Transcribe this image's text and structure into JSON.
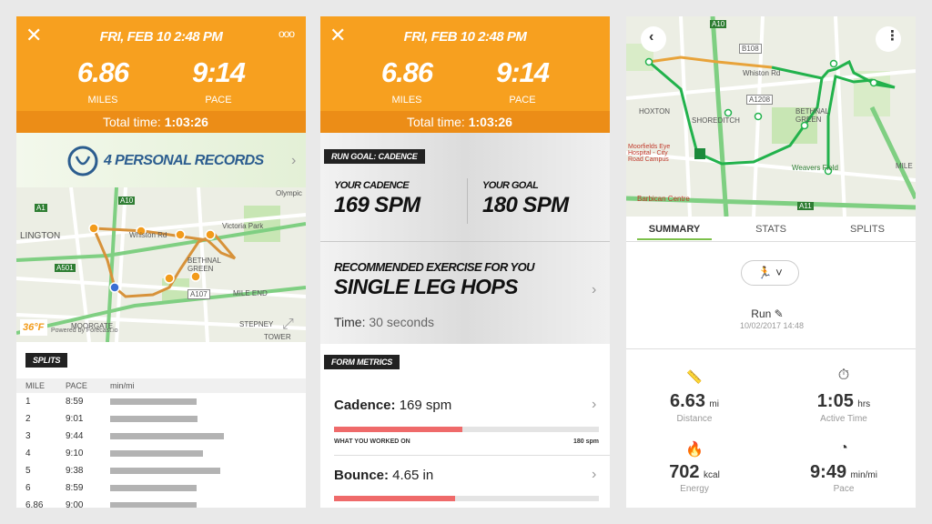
{
  "panel1": {
    "header": {
      "date": "FRI, FEB 10 2:48 PM",
      "distance": "6.86",
      "distance_label": "MILES",
      "pace": "9:14",
      "pace_label": "PACE",
      "total_time_label": "Total time:",
      "total_time": "1:03:26"
    },
    "records": "4 PERSONAL RECORDS",
    "map": {
      "labels": [
        "Olympic",
        "LINGTON",
        "Whiston Rd",
        "Victoria Park",
        "BETHNAL GREEN",
        "MILE END",
        "STEPNEY",
        "TOWER",
        "MOORGATE",
        "A10",
        "A1",
        "A501",
        "A107"
      ],
      "temperature": "36°F",
      "credit": "Powered by Forecast.io"
    },
    "splits": {
      "title": "SPLITS",
      "columns": [
        "MILE",
        "PACE",
        "min/mi"
      ],
      "rows": [
        [
          "1",
          "8:59"
        ],
        [
          "2",
          "9:01"
        ],
        [
          "3",
          "9:44"
        ],
        [
          "4",
          "9:10"
        ],
        [
          "5",
          "9:38"
        ],
        [
          "6",
          "8:59"
        ],
        [
          "6.86",
          "9:00"
        ]
      ]
    }
  },
  "panel2": {
    "header": {
      "date": "FRI, FEB 10 2:48 PM",
      "distance": "6.86",
      "distance_label": "MILES",
      "pace": "9:14",
      "pace_label": "PACE",
      "total_time_label": "Total time:",
      "total_time": "1:03:26"
    },
    "run_goal": {
      "title": "RUN GOAL: CADENCE",
      "your_cadence_label": "YOUR CADENCE",
      "your_cadence": "169 SPM",
      "your_goal_label": "YOUR GOAL",
      "your_goal": "180 SPM"
    },
    "exercise": {
      "label": "RECOMMENDED EXERCISE FOR YOU",
      "name": "SINGLE LEG HOPS",
      "time_label": "Time:",
      "time": "30 seconds"
    },
    "form_metrics": {
      "title": "FORM METRICS",
      "metrics": [
        {
          "label": "Cadence:",
          "value": "169 spm",
          "note": "WHAT YOU WORKED ON",
          "target": "180 spm"
        },
        {
          "label": "Bounce:",
          "value": "4.65 in"
        }
      ]
    }
  },
  "panel3": {
    "map": {
      "labels": [
        "A10",
        "B108",
        "Whiston Rd",
        "HOXTON",
        "SHOREDITCH",
        "A1208",
        "BETHNAL GREEN",
        "Weavers Field",
        "Moorfields Eye Hospital - City Road Campus",
        "Barbican Centre",
        "A11",
        "MILE"
      ]
    },
    "tabs": [
      "SUMMARY",
      "STATS",
      "SPLITS"
    ],
    "activity": "Run",
    "date": "10/02/2017 14:48",
    "stats": [
      {
        "value": "6.63",
        "unit": "mi",
        "label": "Distance"
      },
      {
        "value": "1:05",
        "unit": "hrs",
        "label": "Active Time"
      },
      {
        "value": "702",
        "unit": "kcal",
        "label": "Energy"
      },
      {
        "value": "9:49",
        "unit": "min/mi",
        "label": "Pace"
      }
    ]
  }
}
